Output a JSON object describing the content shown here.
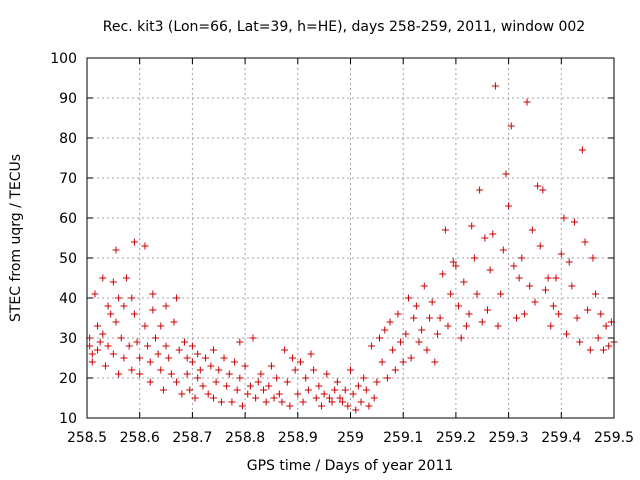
{
  "chart_data": {
    "type": "scatter",
    "title": "Rec. kit3 (Lon=66, Lat=39, h=HE), days 258-259, 2011, window 002",
    "xlabel": "GPS time / Days of year 2011",
    "ylabel": "STEC from uqrg / TECUs",
    "xlim": [
      258.5,
      259.5
    ],
    "ylim": [
      10,
      100
    ],
    "xticks": [
      258.5,
      258.6,
      258.7,
      258.8,
      258.9,
      259,
      259.1,
      259.2,
      259.3,
      259.4,
      259.5
    ],
    "xtick_labels": [
      "258.5",
      "258.6",
      "258.7",
      "258.8",
      "258.9",
      "259",
      "259.1",
      "259.2",
      "259.3",
      "259.4",
      "259.5"
    ],
    "yticks": [
      10,
      20,
      30,
      40,
      50,
      60,
      70,
      80,
      90,
      100
    ],
    "ytick_labels": [
      "10",
      "20",
      "30",
      "40",
      "50",
      "60",
      "70",
      "80",
      "90",
      "100"
    ],
    "grid": true,
    "marker": "+",
    "color": "#cc0000",
    "series": [
      {
        "name": "STEC",
        "points": [
          [
            258.505,
            30
          ],
          [
            258.505,
            28
          ],
          [
            258.51,
            26
          ],
          [
            258.51,
            24
          ],
          [
            258.515,
            41
          ],
          [
            258.52,
            33
          ],
          [
            258.52,
            27
          ],
          [
            258.525,
            29
          ],
          [
            258.53,
            45
          ],
          [
            258.53,
            31
          ],
          [
            258.535,
            23
          ],
          [
            258.54,
            38
          ],
          [
            258.54,
            28
          ],
          [
            258.545,
            36
          ],
          [
            258.55,
            44
          ],
          [
            258.55,
            26
          ],
          [
            258.555,
            52
          ],
          [
            258.555,
            34
          ],
          [
            258.56,
            40
          ],
          [
            258.56,
            21
          ],
          [
            258.565,
            30
          ],
          [
            258.57,
            38
          ],
          [
            258.57,
            25
          ],
          [
            258.575,
            45
          ],
          [
            258.58,
            28
          ],
          [
            258.585,
            40
          ],
          [
            258.585,
            22
          ],
          [
            258.59,
            54
          ],
          [
            258.59,
            36
          ],
          [
            258.595,
            29
          ],
          [
            258.6,
            25
          ],
          [
            258.6,
            21
          ],
          [
            258.61,
            53
          ],
          [
            258.61,
            33
          ],
          [
            258.615,
            28
          ],
          [
            258.62,
            24
          ],
          [
            258.62,
            19
          ],
          [
            258.625,
            41
          ],
          [
            258.625,
            37
          ],
          [
            258.63,
            30
          ],
          [
            258.635,
            26
          ],
          [
            258.64,
            33
          ],
          [
            258.64,
            22
          ],
          [
            258.645,
            17
          ],
          [
            258.65,
            38
          ],
          [
            258.65,
            28
          ],
          [
            258.655,
            25
          ],
          [
            258.66,
            21
          ],
          [
            258.665,
            34
          ],
          [
            258.67,
            40
          ],
          [
            258.67,
            19
          ],
          [
            258.675,
            27
          ],
          [
            258.68,
            16
          ],
          [
            258.685,
            29
          ],
          [
            258.69,
            21
          ],
          [
            258.69,
            25
          ],
          [
            258.695,
            17
          ],
          [
            258.7,
            28
          ],
          [
            258.7,
            24
          ],
          [
            258.705,
            15
          ],
          [
            258.71,
            26
          ],
          [
            258.71,
            20
          ],
          [
            258.715,
            22
          ],
          [
            258.72,
            18
          ],
          [
            258.725,
            25
          ],
          [
            258.73,
            16
          ],
          [
            258.735,
            23
          ],
          [
            258.74,
            27
          ],
          [
            258.74,
            15
          ],
          [
            258.745,
            19
          ],
          [
            258.75,
            22
          ],
          [
            258.755,
            14
          ],
          [
            258.76,
            25
          ],
          [
            258.765,
            18
          ],
          [
            258.77,
            21
          ],
          [
            258.775,
            14
          ],
          [
            258.78,
            24
          ],
          [
            258.785,
            17
          ],
          [
            258.79,
            29
          ],
          [
            258.79,
            20
          ],
          [
            258.795,
            13
          ],
          [
            258.8,
            23
          ],
          [
            258.805,
            16
          ],
          [
            258.81,
            18
          ],
          [
            258.815,
            30
          ],
          [
            258.82,
            15
          ],
          [
            258.825,
            19
          ],
          [
            258.83,
            21
          ],
          [
            258.835,
            17
          ],
          [
            258.84,
            14
          ],
          [
            258.845,
            18
          ],
          [
            258.85,
            23
          ],
          [
            258.855,
            15
          ],
          [
            258.86,
            20
          ],
          [
            258.865,
            16
          ],
          [
            258.87,
            14
          ],
          [
            258.875,
            27
          ],
          [
            258.88,
            19
          ],
          [
            258.885,
            13
          ],
          [
            258.89,
            25
          ],
          [
            258.895,
            22
          ],
          [
            258.9,
            16
          ],
          [
            258.905,
            24
          ],
          [
            258.91,
            14
          ],
          [
            258.915,
            20
          ],
          [
            258.92,
            17
          ],
          [
            258.925,
            26
          ],
          [
            258.93,
            22
          ],
          [
            258.935,
            15
          ],
          [
            258.94,
            18
          ],
          [
            258.945,
            13
          ],
          [
            258.95,
            16
          ],
          [
            258.955,
            21
          ],
          [
            258.96,
            15
          ],
          [
            258.965,
            14
          ],
          [
            258.97,
            17
          ],
          [
            258.975,
            19
          ],
          [
            258.98,
            15
          ],
          [
            258.985,
            14
          ],
          [
            258.99,
            17
          ],
          [
            258.995,
            13
          ],
          [
            259,
            22
          ],
          [
            259.005,
            16
          ],
          [
            259.01,
            12
          ],
          [
            259.015,
            18
          ],
          [
            259.02,
            14
          ],
          [
            259.025,
            20
          ],
          [
            259.03,
            17
          ],
          [
            259.035,
            13
          ],
          [
            259.04,
            28
          ],
          [
            259.045,
            15
          ],
          [
            259.05,
            19
          ],
          [
            259.055,
            30
          ],
          [
            259.06,
            24
          ],
          [
            259.065,
            32
          ],
          [
            259.07,
            20
          ],
          [
            259.075,
            34
          ],
          [
            259.08,
            27
          ],
          [
            259.085,
            22
          ],
          [
            259.09,
            36
          ],
          [
            259.095,
            29
          ],
          [
            259.1,
            24
          ],
          [
            259.105,
            31
          ],
          [
            259.11,
            40
          ],
          [
            259.115,
            25
          ],
          [
            259.12,
            35
          ],
          [
            259.125,
            38
          ],
          [
            259.13,
            29
          ],
          [
            259.135,
            32
          ],
          [
            259.14,
            43
          ],
          [
            259.145,
            27
          ],
          [
            259.15,
            35
          ],
          [
            259.155,
            39
          ],
          [
            259.16,
            24
          ],
          [
            259.165,
            31
          ],
          [
            259.17,
            35
          ],
          [
            259.175,
            46
          ],
          [
            259.18,
            57
          ],
          [
            259.185,
            33
          ],
          [
            259.19,
            41
          ],
          [
            259.195,
            49
          ],
          [
            259.2,
            48
          ],
          [
            259.205,
            38
          ],
          [
            259.21,
            30
          ],
          [
            259.215,
            44
          ],
          [
            259.22,
            33
          ],
          [
            259.225,
            36
          ],
          [
            259.23,
            58
          ],
          [
            259.235,
            50
          ],
          [
            259.24,
            41
          ],
          [
            259.245,
            67
          ],
          [
            259.25,
            34
          ],
          [
            259.255,
            55
          ],
          [
            259.26,
            37
          ],
          [
            259.265,
            47
          ],
          [
            259.27,
            56
          ],
          [
            259.275,
            93
          ],
          [
            259.28,
            33
          ],
          [
            259.285,
            41
          ],
          [
            259.29,
            52
          ],
          [
            259.295,
            71
          ],
          [
            259.3,
            63
          ],
          [
            259.305,
            83
          ],
          [
            259.31,
            48
          ],
          [
            259.315,
            35
          ],
          [
            259.32,
            45
          ],
          [
            259.325,
            50
          ],
          [
            259.33,
            36
          ],
          [
            259.335,
            89
          ],
          [
            259.34,
            43
          ],
          [
            259.345,
            57
          ],
          [
            259.35,
            39
          ],
          [
            259.355,
            68
          ],
          [
            259.36,
            53
          ],
          [
            259.365,
            67
          ],
          [
            259.37,
            42
          ],
          [
            259.375,
            45
          ],
          [
            259.38,
            33
          ],
          [
            259.385,
            38
          ],
          [
            259.39,
            45
          ],
          [
            259.395,
            36
          ],
          [
            259.4,
            51
          ],
          [
            259.405,
            60
          ],
          [
            259.41,
            31
          ],
          [
            259.415,
            49
          ],
          [
            259.42,
            43
          ],
          [
            259.425,
            59
          ],
          [
            259.43,
            35
          ],
          [
            259.435,
            29
          ],
          [
            259.44,
            77
          ],
          [
            259.445,
            54
          ],
          [
            259.45,
            37
          ],
          [
            259.455,
            27
          ],
          [
            259.46,
            50
          ],
          [
            259.465,
            41
          ],
          [
            259.47,
            30
          ],
          [
            259.475,
            36
          ],
          [
            259.48,
            27
          ],
          [
            259.485,
            33
          ],
          [
            259.49,
            28
          ],
          [
            259.495,
            34
          ],
          [
            259.5,
            29
          ]
        ]
      }
    ]
  }
}
